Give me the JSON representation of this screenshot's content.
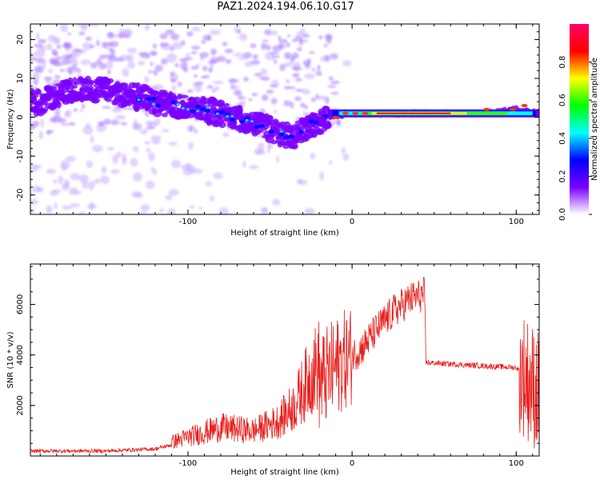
{
  "title": "PAZ1.2024.194.06.10.G17",
  "chart_data": [
    {
      "type": "heatmap",
      "xlabel": "Height of straight line (km)",
      "ylabel": "Frequency (Hz)",
      "xlim": [
        -196,
        114
      ],
      "ylim": [
        -25,
        24
      ],
      "xticks": [
        "-100",
        "0",
        "100"
      ],
      "yticks": [
        "20",
        "10",
        "0",
        "-10",
        "-20"
      ],
      "colorbar": {
        "label": "Normalized spectral amplitude",
        "range": [
          0,
          1
        ],
        "ticks": [
          "0.0",
          "0.2",
          "0.4",
          "0.6",
          "0.8"
        ],
        "colors": [
          "#ffffff",
          "#7a00ff",
          "#0000ff",
          "#00ffff",
          "#00ff00",
          "#ffff00",
          "#ff0000",
          "#ff0066"
        ]
      },
      "ridge": [
        {
          "x": -190,
          "f": 4
        },
        {
          "x": -170,
          "f": 7
        },
        {
          "x": -150,
          "f": 7
        },
        {
          "x": -130,
          "f": 5
        },
        {
          "x": -110,
          "f": 3
        },
        {
          "x": -90,
          "f": 2
        },
        {
          "x": -70,
          "f": 0
        },
        {
          "x": -55,
          "f": -2
        },
        {
          "x": -45,
          "f": -4
        },
        {
          "x": -35,
          "f": -5
        },
        {
          "x": -25,
          "f": -2
        },
        {
          "x": -15,
          "f": 0
        },
        {
          "x": 0,
          "f": 1
        },
        {
          "x": 20,
          "f": 1
        },
        {
          "x": 50,
          "f": 1
        },
        {
          "x": 80,
          "f": 1
        },
        {
          "x": 100,
          "f": 2
        },
        {
          "x": 114,
          "f": 1
        }
      ]
    },
    {
      "type": "line",
      "xlabel": "Height of straight line (km)",
      "ylabel": "SNR (10 * v/v)",
      "xlim": [
        -196,
        114
      ],
      "ylim": [
        0,
        7600
      ],
      "xticks": [
        "-100",
        "0",
        "100"
      ],
      "yticks": [
        "6000",
        "4000",
        "2000"
      ],
      "color": "#e8201e",
      "envelope": [
        {
          "x": -196,
          "snr": 200
        },
        {
          "x": -150,
          "snr": 200
        },
        {
          "x": -120,
          "snr": 280
        },
        {
          "x": -100,
          "snr": 600
        },
        {
          "x": -80,
          "snr": 900
        },
        {
          "x": -60,
          "snr": 800
        },
        {
          "x": -45,
          "snr": 1100
        },
        {
          "x": -35,
          "snr": 1600
        },
        {
          "x": -25,
          "snr": 2600
        },
        {
          "x": -15,
          "snr": 3200
        },
        {
          "x": -5,
          "snr": 3800
        },
        {
          "x": 5,
          "snr": 4200
        },
        {
          "x": 15,
          "snr": 5000
        },
        {
          "x": 25,
          "snr": 5700
        },
        {
          "x": 35,
          "snr": 6200
        },
        {
          "x": 44,
          "snr": 6400
        },
        {
          "x": 45,
          "snr": 3700
        },
        {
          "x": 70,
          "snr": 3600
        },
        {
          "x": 100,
          "snr": 3500
        },
        {
          "x": 105,
          "snr": 3200
        },
        {
          "x": 114,
          "snr": 2500
        }
      ]
    }
  ]
}
